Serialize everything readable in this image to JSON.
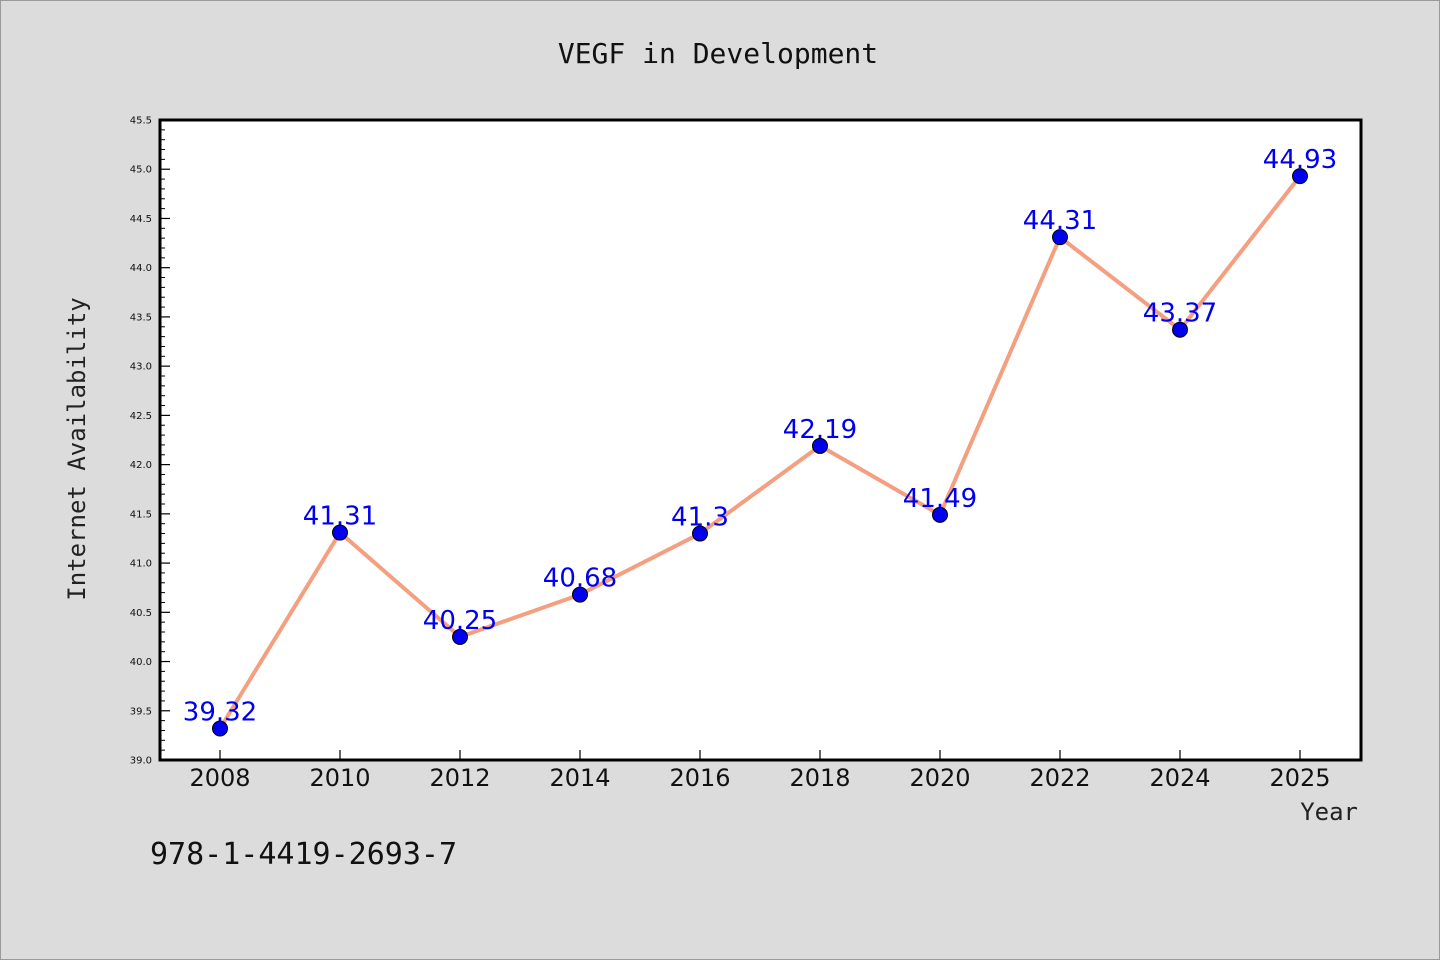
{
  "chart_data": {
    "type": "line",
    "title": "VEGF in Development",
    "xlabel": "Year",
    "ylabel": "Internet Availability",
    "categories": [
      "2008",
      "2010",
      "2012",
      "2014",
      "2016",
      "2018",
      "2020",
      "2022",
      "2024",
      "2025"
    ],
    "series": [
      {
        "values": [
          39.32,
          41.31,
          40.25,
          40.68,
          41.3,
          42.19,
          41.49,
          44.31,
          43.37,
          44.93
        ]
      }
    ],
    "data_labels": [
      "39.32",
      "41.31",
      "40.25",
      "40.68",
      "41.3",
      "42.19",
      "41.49",
      "44.31",
      "43.37",
      "44.93"
    ],
    "ylim": [
      39.0,
      45.5
    ],
    "yticks": [
      39.0,
      39.5,
      40.0,
      40.5,
      41.0,
      41.5,
      42.0,
      42.5,
      43.0,
      43.5,
      44.0,
      44.5,
      45.0,
      45.5
    ],
    "ytick_labels": [
      "39.0",
      "39.5",
      "40.0",
      "40.5",
      "41.0",
      "41.5",
      "42.0",
      "42.5",
      "43.0",
      "43.5",
      "44.0",
      "44.5",
      "45.0",
      "45.5"
    ],
    "grid": false,
    "colors": {
      "line": "#f4a080",
      "marker": "#0000ee",
      "label": "#0000ee"
    }
  },
  "footer": {
    "isbn": "978-1-4419-2693-7"
  }
}
